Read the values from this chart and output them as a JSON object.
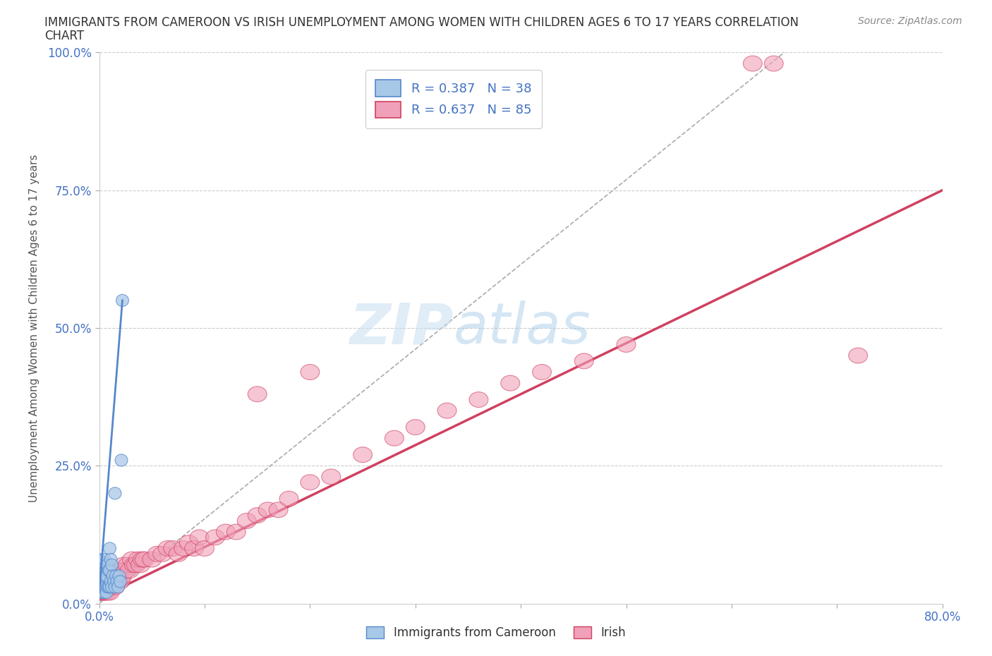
{
  "title_line1": "IMMIGRANTS FROM CAMEROON VS IRISH UNEMPLOYMENT AMONG WOMEN WITH CHILDREN AGES 6 TO 17 YEARS CORRELATION",
  "title_line2": "CHART",
  "source_text": "Source: ZipAtlas.com",
  "ylabel_text": "Unemployment Among Women with Children Ages 6 to 17 years",
  "xlim": [
    0.0,
    0.8
  ],
  "ylim": [
    0.0,
    1.0
  ],
  "xticks": [
    0.0,
    0.1,
    0.2,
    0.3,
    0.4,
    0.5,
    0.6,
    0.7,
    0.8
  ],
  "xticklabels": [
    "0.0%",
    "",
    "",
    "",
    "",
    "",
    "",
    "",
    "80.0%"
  ],
  "yticks": [
    0.0,
    0.25,
    0.5,
    0.75,
    1.0
  ],
  "yticklabels": [
    "0.0%",
    "25.0%",
    "50.0%",
    "75.0%",
    "100.0%"
  ],
  "legend_R1": "R = 0.387",
  "legend_N1": "N = 38",
  "legend_R2": "R = 0.637",
  "legend_N2": "N = 85",
  "color_blue": "#a8c8e8",
  "color_blue_dark": "#5588cc",
  "color_pink": "#f0a0b8",
  "color_pink_dark": "#d04060",
  "color_legend_text": "#4472c4",
  "watermark_ZIP": "ZIP",
  "watermark_atlas": "atlas",
  "background_color": "#ffffff",
  "grid_color": "#cccccc"
}
